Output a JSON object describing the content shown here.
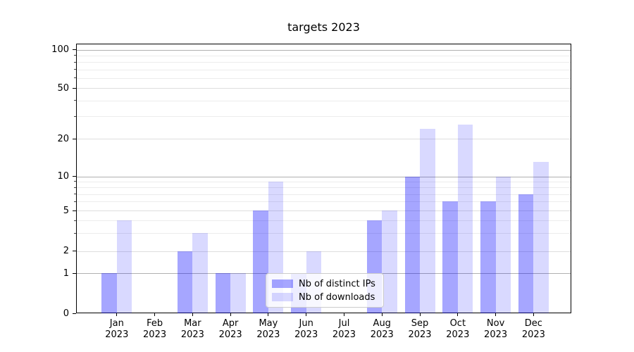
{
  "header": {
    "title": "targets 2023"
  },
  "colors": {
    "ips_bar": "rgba(0,0,255,0.35)",
    "downloads_bar": "rgba(0,0,255,0.15)",
    "grid_major": "#b0b0b0",
    "grid_labeled_minor": "#dedede",
    "grid_minor": "#ececec",
    "spine": "#000000"
  },
  "legend": {
    "items": [
      {
        "label": "Nb of distinct IPs",
        "series": "ips"
      },
      {
        "label": "Nb of downloads",
        "series": "downloads"
      }
    ]
  },
  "chart_data": {
    "type": "bar",
    "title": "targets 2023",
    "categories": [
      "Jan 2023",
      "Feb 2023",
      "Mar 2023",
      "Apr 2023",
      "May 2023",
      "Jun 2023",
      "Jul 2023",
      "Aug 2023",
      "Sep 2023",
      "Oct 2023",
      "Nov 2023",
      "Dec 2023"
    ],
    "x_tick_line1": [
      "Jan",
      "Feb",
      "Mar",
      "Apr",
      "May",
      "Jun",
      "Jul",
      "Aug",
      "Sep",
      "Oct",
      "Nov",
      "Dec"
    ],
    "x_tick_line2": [
      "2023",
      "2023",
      "2023",
      "2023",
      "2023",
      "2023",
      "2023",
      "2023",
      "2023",
      "2023",
      "2023",
      "2023"
    ],
    "series": [
      {
        "name": "Nb of distinct IPs",
        "values": [
          1,
          0,
          2,
          1,
          5,
          1,
          0,
          4,
          10,
          6,
          6,
          7
        ]
      },
      {
        "name": "Nb of downloads",
        "values": [
          4,
          0,
          3,
          1,
          9,
          2,
          0,
          5,
          24,
          26,
          10,
          13
        ]
      }
    ],
    "xlabel": "",
    "ylabel": "",
    "yscale": "log-like with 0 baseline",
    "yticks": [
      0,
      1,
      2,
      5,
      10,
      20,
      50,
      100
    ],
    "yticks_minor": [
      3,
      4,
      6,
      7,
      8,
      9,
      30,
      40,
      60,
      70,
      80,
      90
    ],
    "ylim": [
      0,
      115
    ],
    "grid": "on",
    "legend_position": "lower center"
  }
}
